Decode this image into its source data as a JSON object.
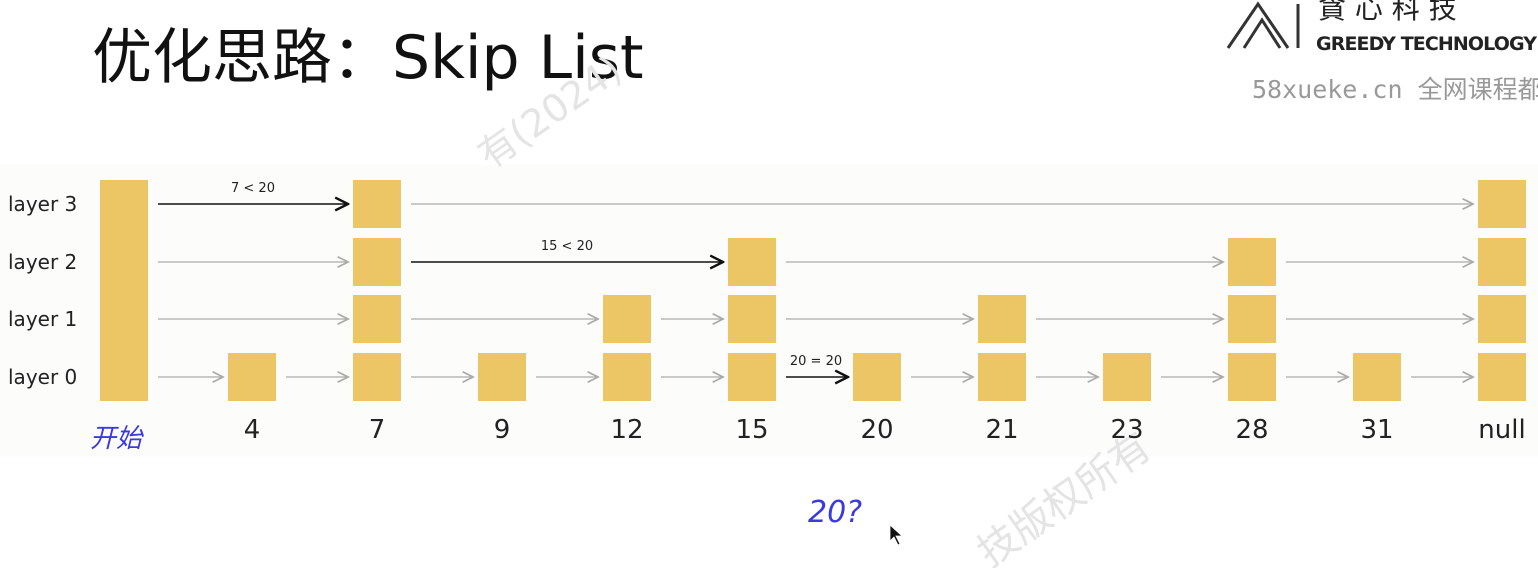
{
  "header": {
    "title": "优化思路：Skip List"
  },
  "logo": {
    "cn": "貪 心 科 技",
    "en": "GREEDY TECHNOLOGY",
    "site": "58xueke.cn 全网课程都"
  },
  "watermarks": [
    "有(2024)",
    "技版权所有"
  ],
  "layers": [
    "layer 3",
    "layer 2",
    "layer 1",
    "layer 0"
  ],
  "columns": [
    {
      "label": "4",
      "height": 1
    },
    {
      "label": "7",
      "height": 4
    },
    {
      "label": "9",
      "height": 1
    },
    {
      "label": "12",
      "height": 2
    },
    {
      "label": "15",
      "height": 3
    },
    {
      "label": "20",
      "height": 1
    },
    {
      "label": "21",
      "height": 2
    },
    {
      "label": "23",
      "height": 1
    },
    {
      "label": "28",
      "height": 3
    },
    {
      "label": "31",
      "height": 1
    },
    {
      "label": "null",
      "height": 4
    }
  ],
  "annotations": [
    "7 < 20",
    "15 < 20",
    "20 = 20"
  ],
  "handwriting": {
    "start": "开始",
    "query": "20?"
  }
}
